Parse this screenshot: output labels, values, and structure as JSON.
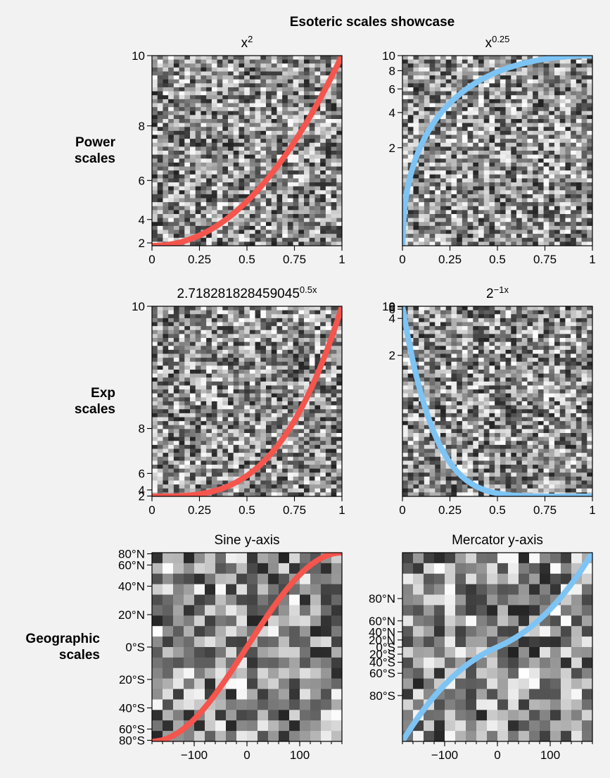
{
  "figure": {
    "suptitle": "Esoteric scales showcase",
    "row_labels": [
      [
        "Power",
        "scales"
      ],
      [
        "Exp",
        "scales"
      ],
      [
        "Geographic",
        "scales"
      ]
    ]
  },
  "colors": {
    "red": "#f5554d",
    "blue": "#7dc4f5",
    "bg": "#f2f2f2"
  },
  "chart_data": [
    {
      "type": "heatmap+line",
      "title": "x²",
      "title_base": "x",
      "title_sup": "2",
      "color": "red",
      "scale": "power",
      "exponent": 2,
      "xlim": [
        0,
        1
      ],
      "ylim": [
        1.6,
        10
      ],
      "xticks": [
        0,
        0.25,
        0.5,
        0.75,
        1
      ],
      "xtick_labels": [
        "0",
        "0.25",
        "0.5",
        "0.75",
        "1"
      ],
      "yticks": [
        2,
        4,
        6,
        8,
        10
      ],
      "ytick_labels": [
        "2",
        "4",
        "6",
        "8",
        "10"
      ],
      "line": {
        "x_start": 0,
        "x_end": 1,
        "y_start": 1.6,
        "y_end": 10,
        "shape": "quadratic ease-in"
      }
    },
    {
      "type": "heatmap+line",
      "title": "x^0.25",
      "title_base": "x",
      "title_sup": "0.25",
      "color": "blue",
      "scale": "power",
      "exponent": 0.25,
      "xlim": [
        0,
        1
      ],
      "ylim": [
        0.1,
        10
      ],
      "xticks": [
        0,
        0.25,
        0.5,
        0.75,
        1
      ],
      "xtick_labels": [
        "0",
        "0.25",
        "0.5",
        "0.75",
        "1"
      ],
      "yticks": [
        2,
        4,
        6,
        8,
        10
      ],
      "ytick_labels": [
        "2",
        "4",
        "6",
        "8",
        "10"
      ],
      "line": {
        "x_start": 0,
        "x_end": 1,
        "y_start": 0.1,
        "y_end": 10,
        "shape": "quarter-root rise"
      }
    },
    {
      "type": "heatmap+line",
      "title": "2.718281828459045^0.5x",
      "title_base": "2.718281828459045",
      "title_sup": "0.5x",
      "color": "red",
      "scale": "exp",
      "base": 2.718281828459045,
      "exponent": 0.5,
      "xlim": [
        0,
        1
      ],
      "ylim": [
        1.8,
        10
      ],
      "xticks": [
        0,
        0.25,
        0.5,
        0.75,
        1
      ],
      "xtick_labels": [
        "0",
        "0.25",
        "0.5",
        "0.75",
        "1"
      ],
      "yticks": [
        2,
        4,
        6,
        8,
        10
      ],
      "ytick_labels": [
        "2",
        "4",
        "6",
        "8",
        "10"
      ],
      "line": {
        "x_start": 0,
        "x_end": 1,
        "y_start": 1.8,
        "y_end": 10,
        "shape": "exponential rise"
      }
    },
    {
      "type": "heatmap+line",
      "title": "2^−1x",
      "title_base": "2",
      "title_sup": "−1x",
      "color": "blue",
      "scale": "exp",
      "base": 2,
      "exponent": -1,
      "xlim": [
        0,
        1
      ],
      "ylim": [
        10,
        0.05
      ],
      "xticks": [
        0,
        0.25,
        0.5,
        0.75,
        1
      ],
      "xtick_labels": [
        "0",
        "0.25",
        "0.5",
        "0.75",
        "1"
      ],
      "yticks": [
        2,
        4,
        6,
        8,
        10
      ],
      "ytick_labels": [
        "2",
        "4",
        "6",
        "8",
        "10"
      ],
      "line": {
        "x_start": 0,
        "x_end": 1,
        "y_start": 10,
        "y_end": 0.05,
        "shape": "exponential decay"
      }
    },
    {
      "type": "heatmap+line",
      "title": "Sine y-axis",
      "color": "red",
      "scale": "sine",
      "xlim": [
        -180,
        180
      ],
      "ylim": [
        -85,
        85
      ],
      "xticks": [
        -100,
        0,
        100
      ],
      "xtick_labels": [
        "−100",
        "0",
        "100"
      ],
      "yticks": [
        -80,
        -60,
        -40,
        -20,
        0,
        20,
        40,
        60,
        80
      ],
      "ytick_labels": [
        "80°S",
        "60°S",
        "40°S",
        "20°S",
        "0°S",
        "20°N",
        "40°N",
        "60°N",
        "80°N"
      ],
      "line": {
        "x_start": -180,
        "x_end": 180,
        "y_start": -85,
        "y_end": 85,
        "shape": "sinusoidal S-curve"
      }
    },
    {
      "type": "heatmap+line",
      "title": "Mercator y-axis",
      "color": "blue",
      "scale": "mercator",
      "xlim": [
        -180,
        180
      ],
      "ylim": [
        -89,
        89
      ],
      "xticks": [
        -100,
        0,
        100
      ],
      "xtick_labels": [
        "−100",
        "0",
        "100"
      ],
      "yticks": [
        -80,
        -60,
        -40,
        -20,
        0,
        20,
        40,
        60,
        80
      ],
      "ytick_labels": [
        "80°S",
        "60°S",
        "40°S",
        "20°S",
        "0°S",
        "20°N",
        "40°N",
        "60°N",
        "80°N"
      ],
      "line": {
        "x_start": -180,
        "x_end": 180,
        "y_start": -89,
        "y_end": 89,
        "shape": "linear latitude"
      }
    }
  ]
}
